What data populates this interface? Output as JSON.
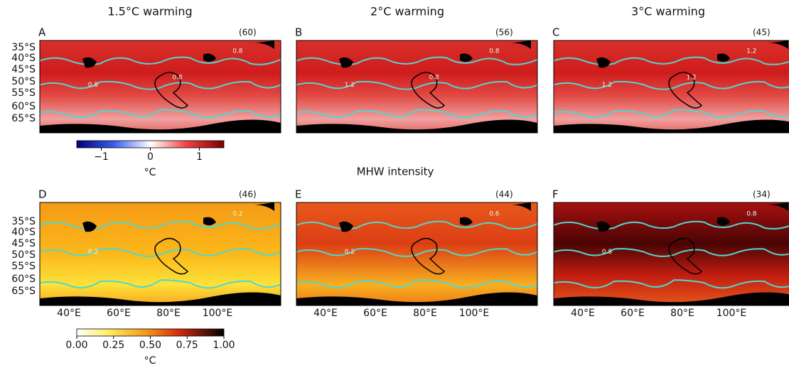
{
  "columns": [
    "1.5°C warming",
    "2°C warming",
    "3°C warming"
  ],
  "row_title": "MHW intensity",
  "panels": [
    {
      "letter": "A",
      "count": "(60)",
      "contour_labels": [
        "0.8",
        "0.8",
        "0.8"
      ]
    },
    {
      "letter": "B",
      "count": "(56)",
      "contour_labels": [
        "0.8",
        "1.2",
        "0.8"
      ]
    },
    {
      "letter": "C",
      "count": "(45)",
      "contour_labels": [
        "1.2",
        "1.2",
        "1.2"
      ]
    },
    {
      "letter": "D",
      "count": "(46)",
      "contour_labels": [
        "0.2",
        "0.2"
      ]
    },
    {
      "letter": "E",
      "count": "(44)",
      "contour_labels": [
        "0.6",
        "0.2"
      ]
    },
    {
      "letter": "F",
      "count": "(34)",
      "contour_labels": [
        "0.8",
        "0.8"
      ]
    }
  ],
  "lat_ticks": [
    "35°S",
    "40°S",
    "45°S",
    "50°S",
    "55°S",
    "60°S",
    "65°S"
  ],
  "lon_ticks": [
    "40°E",
    "60°E",
    "80°E",
    "100°E"
  ],
  "colorbars": [
    {
      "lim": [
        -1.5,
        1.5
      ],
      "ticks": [
        {
          "value": -1,
          "label": "−1"
        },
        0,
        1
      ],
      "unit": "°C"
    },
    {
      "lim": [
        0,
        1
      ],
      "ticks": [
        {
          "value": 0,
          "label": "0.00"
        },
        {
          "value": 0.25,
          "label": "0.25"
        },
        {
          "value": 0.5,
          "label": "0.50"
        },
        {
          "value": 0.75,
          "label": "0.75"
        },
        {
          "value": 1,
          "label": "1.00"
        }
      ],
      "unit": "°C"
    }
  ]
}
